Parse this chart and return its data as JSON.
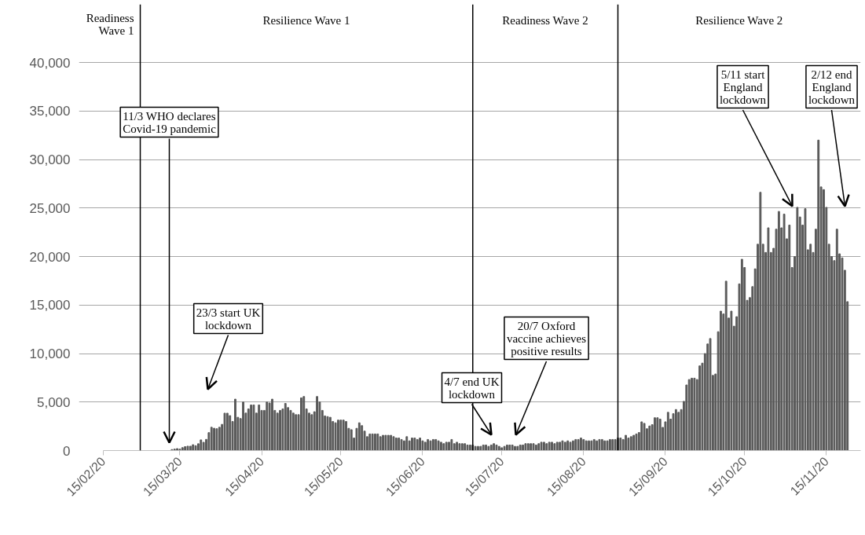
{
  "chart_data": {
    "type": "bar",
    "x": [
      "2020-03-12",
      "2020-03-13",
      "2020-03-14",
      "2020-03-15",
      "2020-03-16",
      "2020-03-17",
      "2020-03-18",
      "2020-03-19",
      "2020-03-20",
      "2020-03-21",
      "2020-03-22",
      "2020-03-23",
      "2020-03-24",
      "2020-03-25",
      "2020-03-26",
      "2020-03-27",
      "2020-03-28",
      "2020-03-29",
      "2020-03-30",
      "2020-03-31",
      "2020-04-01",
      "2020-04-02",
      "2020-04-03",
      "2020-04-04",
      "2020-04-05",
      "2020-04-06",
      "2020-04-07",
      "2020-04-08",
      "2020-04-09",
      "2020-04-10",
      "2020-04-11",
      "2020-04-12",
      "2020-04-13",
      "2020-04-14",
      "2020-04-15",
      "2020-04-16",
      "2020-04-17",
      "2020-04-18",
      "2020-04-19",
      "2020-04-20",
      "2020-04-21",
      "2020-04-22",
      "2020-04-23",
      "2020-04-24",
      "2020-04-25",
      "2020-04-26",
      "2020-04-27",
      "2020-04-28",
      "2020-04-29",
      "2020-04-30",
      "2020-05-01",
      "2020-05-02",
      "2020-05-03",
      "2020-05-04",
      "2020-05-05",
      "2020-05-06",
      "2020-05-07",
      "2020-05-08",
      "2020-05-09",
      "2020-05-10",
      "2020-05-11",
      "2020-05-12",
      "2020-05-13",
      "2020-05-14",
      "2020-05-15",
      "2020-05-16",
      "2020-05-17",
      "2020-05-18",
      "2020-05-19",
      "2020-05-20",
      "2020-05-21",
      "2020-05-22",
      "2020-05-23",
      "2020-05-24",
      "2020-05-25",
      "2020-05-26",
      "2020-05-27",
      "2020-05-28",
      "2020-05-29",
      "2020-05-30",
      "2020-05-31",
      "2020-06-01",
      "2020-06-02",
      "2020-06-03",
      "2020-06-04",
      "2020-06-05",
      "2020-06-06",
      "2020-06-07",
      "2020-06-08",
      "2020-06-09",
      "2020-06-10",
      "2020-06-11",
      "2020-06-12",
      "2020-06-13",
      "2020-06-14",
      "2020-06-15",
      "2020-06-16",
      "2020-06-17",
      "2020-06-18",
      "2020-06-19",
      "2020-06-20",
      "2020-06-21",
      "2020-06-22",
      "2020-06-23",
      "2020-06-24",
      "2020-06-25",
      "2020-06-26",
      "2020-06-27",
      "2020-06-28",
      "2020-06-29",
      "2020-06-30",
      "2020-07-01",
      "2020-07-02",
      "2020-07-03",
      "2020-07-04",
      "2020-07-05",
      "2020-07-06",
      "2020-07-07",
      "2020-07-08",
      "2020-07-09",
      "2020-07-10",
      "2020-07-11",
      "2020-07-12",
      "2020-07-13",
      "2020-07-14",
      "2020-07-15",
      "2020-07-16",
      "2020-07-17",
      "2020-07-18",
      "2020-07-19",
      "2020-07-20",
      "2020-07-21",
      "2020-07-22",
      "2020-07-23",
      "2020-07-24",
      "2020-07-25",
      "2020-07-26",
      "2020-07-27",
      "2020-07-28",
      "2020-07-29",
      "2020-07-30",
      "2020-07-31",
      "2020-08-01",
      "2020-08-02",
      "2020-08-03",
      "2020-08-04",
      "2020-08-05",
      "2020-08-06",
      "2020-08-07",
      "2020-08-08",
      "2020-08-09",
      "2020-08-10",
      "2020-08-11",
      "2020-08-12",
      "2020-08-13",
      "2020-08-14",
      "2020-08-15",
      "2020-08-16",
      "2020-08-17",
      "2020-08-18",
      "2020-08-19",
      "2020-08-20",
      "2020-08-21",
      "2020-08-22",
      "2020-08-23",
      "2020-08-24",
      "2020-08-25",
      "2020-08-26",
      "2020-08-27",
      "2020-08-28",
      "2020-08-29",
      "2020-08-30",
      "2020-08-31",
      "2020-09-01",
      "2020-09-02",
      "2020-09-03",
      "2020-09-04",
      "2020-09-05",
      "2020-09-06",
      "2020-09-07",
      "2020-09-08",
      "2020-09-09",
      "2020-09-10",
      "2020-09-11",
      "2020-09-12",
      "2020-09-13",
      "2020-09-14",
      "2020-09-15",
      "2020-09-16",
      "2020-09-17",
      "2020-09-18",
      "2020-09-19",
      "2020-09-20",
      "2020-09-21",
      "2020-09-22",
      "2020-09-23",
      "2020-09-24",
      "2020-09-25",
      "2020-09-26",
      "2020-09-27",
      "2020-09-28",
      "2020-09-29",
      "2020-09-30",
      "2020-10-01",
      "2020-10-02",
      "2020-10-03",
      "2020-10-04",
      "2020-10-05",
      "2020-10-06",
      "2020-10-07",
      "2020-10-08",
      "2020-10-09",
      "2020-10-10",
      "2020-10-11",
      "2020-10-12",
      "2020-10-13",
      "2020-10-14",
      "2020-10-15",
      "2020-10-16",
      "2020-10-17",
      "2020-10-18",
      "2020-10-19",
      "2020-10-20",
      "2020-10-21",
      "2020-10-22",
      "2020-10-23",
      "2020-10-24",
      "2020-10-25",
      "2020-10-26",
      "2020-10-27",
      "2020-10-28",
      "2020-10-29",
      "2020-10-30",
      "2020-10-31",
      "2020-11-01",
      "2020-11-02",
      "2020-11-03",
      "2020-11-04",
      "2020-11-05",
      "2020-11-06",
      "2020-11-07",
      "2020-11-08",
      "2020-11-09",
      "2020-11-10",
      "2020-11-11",
      "2020-11-12",
      "2020-11-13",
      "2020-11-14",
      "2020-11-15",
      "2020-11-16",
      "2020-11-17",
      "2020-11-18",
      "2020-11-19",
      "2020-11-20",
      "2020-11-21",
      "2020-11-22",
      "2020-11-23"
    ],
    "series": [
      {
        "color": "#595959",
        "values": [
          100,
          150,
          200,
          150,
          300,
          400,
          450,
          450,
          600,
          500,
          700,
          1100,
          850,
          1150,
          1850,
          2400,
          2300,
          2250,
          2400,
          2700,
          3850,
          3850,
          3600,
          3000,
          5300,
          3430,
          3300,
          5000,
          3860,
          4290,
          4700,
          4700,
          3860,
          4700,
          4140,
          4140,
          5000,
          4900,
          5300,
          4140,
          3860,
          4140,
          4290,
          4860,
          4430,
          4140,
          3860,
          3700,
          3700,
          5430,
          5570,
          4290,
          3860,
          3700,
          4000,
          5570,
          5000,
          4140,
          3570,
          3500,
          3430,
          3000,
          2860,
          3140,
          3140,
          3140,
          3000,
          2290,
          2150,
          1290,
          2290,
          2860,
          2570,
          2000,
          1430,
          1710,
          1710,
          1710,
          1710,
          1430,
          1570,
          1570,
          1570,
          1570,
          1430,
          1290,
          1290,
          1140,
          1000,
          1430,
          1000,
          1290,
          1290,
          1140,
          1290,
          1000,
          860,
          1140,
          1000,
          1140,
          1140,
          1000,
          860,
          710,
          860,
          860,
          1140,
          710,
          860,
          710,
          710,
          710,
          570,
          570,
          570,
          430,
          430,
          430,
          570,
          570,
          430,
          570,
          710,
          570,
          430,
          290,
          430,
          570,
          570,
          570,
          430,
          430,
          570,
          570,
          710,
          710,
          710,
          710,
          570,
          710,
          860,
          860,
          710,
          860,
          860,
          710,
          860,
          860,
          1000,
          860,
          1000,
          860,
          1000,
          1140,
          1140,
          1290,
          1140,
          1000,
          1000,
          1000,
          1140,
          1000,
          1140,
          1140,
          1000,
          1000,
          1140,
          1140,
          1140,
          1290,
          1290,
          1140,
          1570,
          1290,
          1430,
          1570,
          1710,
          1860,
          2960,
          2800,
          2250,
          2530,
          2670,
          3380,
          3380,
          3240,
          2390,
          2960,
          3940,
          3240,
          3800,
          4230,
          3940,
          4230,
          5070,
          6760,
          7320,
          7460,
          7460,
          7320,
          8730,
          9010,
          10000,
          10990,
          11550,
          7750,
          7890,
          12250,
          14370,
          14080,
          17460,
          13660,
          14370,
          12820,
          13800,
          17180,
          19720,
          18870,
          15490,
          15770,
          16900,
          18730,
          21270,
          26620,
          21270,
          20420,
          22960,
          20420,
          20850,
          22820,
          24650,
          22960,
          24370,
          21830,
          23240,
          18870,
          20000,
          25070,
          24080,
          23240,
          24930,
          20700,
          21270,
          20420,
          22820,
          32000,
          27180,
          26900,
          25070,
          21270,
          20000,
          19580,
          22820,
          20280,
          19860,
          18590,
          15350
        ]
      }
    ],
    "xlim": [
      "2020-02-15",
      "2020-11-28"
    ],
    "xticks": [
      {
        "value": "2020-02-15",
        "label": "15/02/20"
      },
      {
        "value": "2020-03-15",
        "label": "15/03/20"
      },
      {
        "value": "2020-04-15",
        "label": "15/04/20"
      },
      {
        "value": "2020-05-15",
        "label": "15/05/20"
      },
      {
        "value": "2020-06-15",
        "label": "15/06/20"
      },
      {
        "value": "2020-07-15",
        "label": "15/07/20"
      },
      {
        "value": "2020-08-15",
        "label": "15/08/20"
      },
      {
        "value": "2020-09-15",
        "label": "15/09/20"
      },
      {
        "value": "2020-10-15",
        "label": "15/10/20"
      },
      {
        "value": "2020-11-15",
        "label": "15/11/20"
      }
    ],
    "ylim": [
      0,
      46000
    ],
    "yticks": [
      0,
      {
        "value": 5000,
        "label": "5,000"
      },
      {
        "value": 10000,
        "label": "10,000"
      },
      {
        "value": 15000,
        "label": "15,000"
      },
      {
        "value": 20000,
        "label": "20,000"
      },
      {
        "value": 25000,
        "label": "25,000"
      },
      {
        "value": 30000,
        "label": "30,000"
      },
      {
        "value": 35000,
        "label": "35,000"
      },
      {
        "value": 40000,
        "label": "40,000"
      }
    ],
    "grid": "y",
    "ref_lines": [
      {
        "axis": "x",
        "value": "2020-02-29",
        "color": "#000000"
      },
      {
        "axis": "x",
        "value": "2020-07-04",
        "color": "#000000"
      },
      {
        "axis": "x",
        "value": "2020-08-28",
        "color": "#000000"
      }
    ],
    "annotations": [
      "Readiness Wave 1",
      "Resilience Wave 1",
      "Readiness Wave 2",
      "Resilience Wave 2",
      "11/3 WHO declares Covid-19 pandemic",
      "23/3 start UK lockdown",
      "4/7 end UK lockdown",
      "20/7 Oxford vaccine achieves positive results",
      "5/11 start England lockdown",
      "2/12 end England lockdown"
    ]
  }
}
